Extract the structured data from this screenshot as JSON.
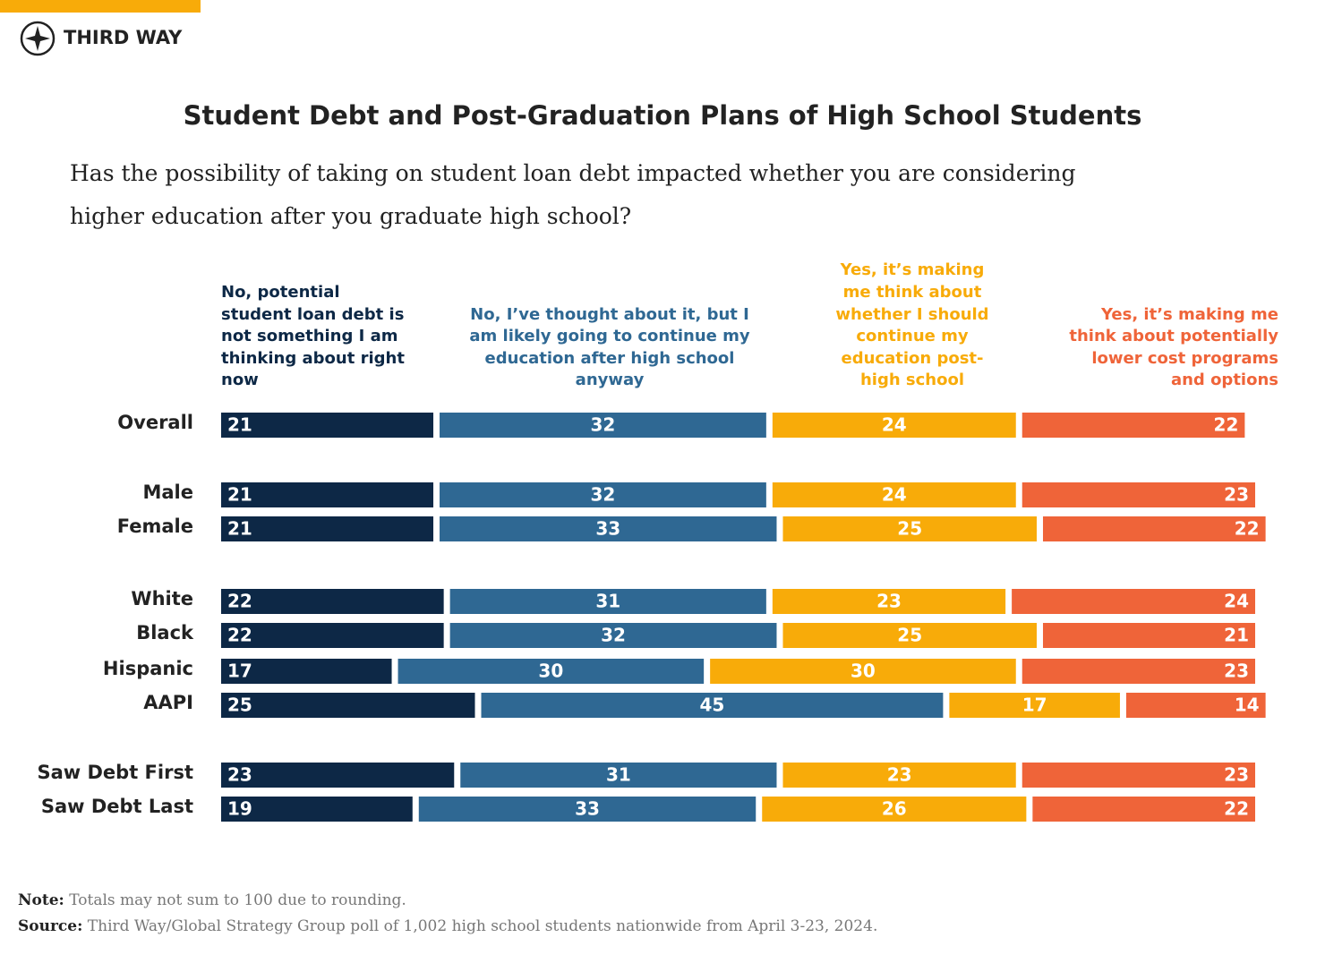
{
  "brand": "THIRD WAY",
  "chart_data": {
    "type": "stacked-bar",
    "title": "Student Debt and Post-Graduation Plans of High School Students",
    "subtitle": "Has the possibility of taking on student loan debt impacted whether you are considering higher education after you graduate high school?",
    "categories": [
      "Overall",
      "Male",
      "Female",
      "White",
      "Black",
      "Hispanic",
      "AAPI",
      "Saw Debt First",
      "Saw Debt Last"
    ],
    "series": [
      {
        "name": "No, potential student loan debt is not something I am thinking about right now",
        "color": "#0d2846",
        "values": [
          21,
          21,
          21,
          22,
          22,
          17,
          25,
          23,
          19
        ]
      },
      {
        "name": "No, I’ve thought about it, but I am likely going to continue my education after high school anyway",
        "color": "#2f6893",
        "values": [
          32,
          32,
          33,
          31,
          32,
          30,
          45,
          31,
          33
        ]
      },
      {
        "name": "Yes, it’s making me think about whether I should continue my education post-high school",
        "color": "#f8ab09",
        "values": [
          24,
          24,
          25,
          23,
          25,
          30,
          17,
          23,
          26
        ]
      },
      {
        "name": "Yes, it’s making me think about potentially lower cost programs and options",
        "color": "#ef6439",
        "values": [
          22,
          23,
          22,
          24,
          21,
          23,
          14,
          23,
          22
        ]
      }
    ],
    "note_label": "Note:",
    "note": "Totals may not sum to 100 due to rounding.",
    "source_label": "Source:",
    "source": "Third Way/Global Strategy Group poll of 1,002 high school students nationwide from April 3-23, 2024."
  }
}
